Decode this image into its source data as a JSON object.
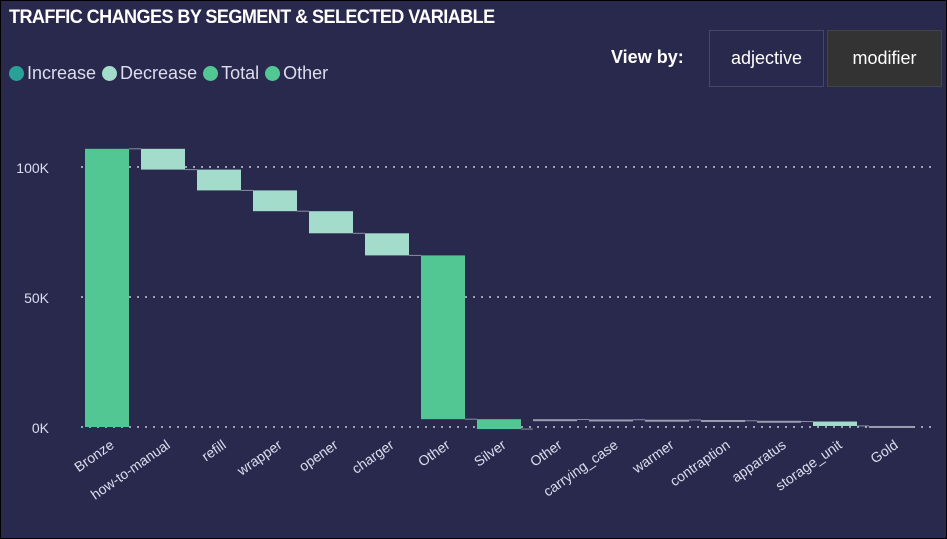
{
  "title": "TRAFFIC CHANGES BY SEGMENT & SELECTED VARIABLE",
  "view_by": {
    "label": "View by:",
    "options": [
      "adjective",
      "modifier"
    ],
    "selected": "modifier"
  },
  "colors": {
    "Increase": "#2aa198",
    "Decrease": "#a3dccb",
    "Total": "#52c793",
    "Other": "#52c793",
    "connector": "#8a8fa0",
    "background": "#28294d"
  },
  "chart_data": {
    "type": "waterfall",
    "legend": [
      "Increase",
      "Decrease",
      "Total",
      "Other"
    ],
    "legend_position": "top-left",
    "yticks": [
      {
        "v": 0,
        "label": "0K"
      },
      {
        "v": 50000,
        "label": "50K"
      },
      {
        "v": 100000,
        "label": "100K"
      }
    ],
    "ylim": [
      -3000,
      120000
    ],
    "grid": true,
    "bars": [
      {
        "label": "Bronze",
        "kind": "Total",
        "start": 0,
        "end": 107000
      },
      {
        "label": "how-to-manual",
        "kind": "Decrease",
        "start": 107000,
        "end": 99000
      },
      {
        "label": "refill",
        "kind": "Decrease",
        "start": 99000,
        "end": 91000
      },
      {
        "label": "wrapper",
        "kind": "Decrease",
        "start": 91000,
        "end": 83000
      },
      {
        "label": "opener",
        "kind": "Decrease",
        "start": 83000,
        "end": 74500
      },
      {
        "label": "charger",
        "kind": "Decrease",
        "start": 74500,
        "end": 66000
      },
      {
        "label": "Other",
        "kind": "Other",
        "start": 66000,
        "end": 3000
      },
      {
        "label": "Silver",
        "kind": "Total",
        "start": 3000,
        "end": -800
      },
      {
        "label": "Other",
        "kind": "Decrease",
        "start": 3000,
        "end": 2900
      },
      {
        "label": "carrying_case",
        "kind": "Decrease",
        "start": 2900,
        "end": 2800
      },
      {
        "label": "warmer",
        "kind": "Decrease",
        "start": 2800,
        "end": 2700
      },
      {
        "label": "contraption",
        "kind": "Decrease",
        "start": 2700,
        "end": 2400
      },
      {
        "label": "apparatus",
        "kind": "Decrease",
        "start": 2400,
        "end": 2100
      },
      {
        "label": "storage_unit",
        "kind": "Decrease",
        "start": 2100,
        "end": 400
      },
      {
        "label": "Gold",
        "kind": "Total",
        "start": 400,
        "end": 0
      }
    ]
  }
}
